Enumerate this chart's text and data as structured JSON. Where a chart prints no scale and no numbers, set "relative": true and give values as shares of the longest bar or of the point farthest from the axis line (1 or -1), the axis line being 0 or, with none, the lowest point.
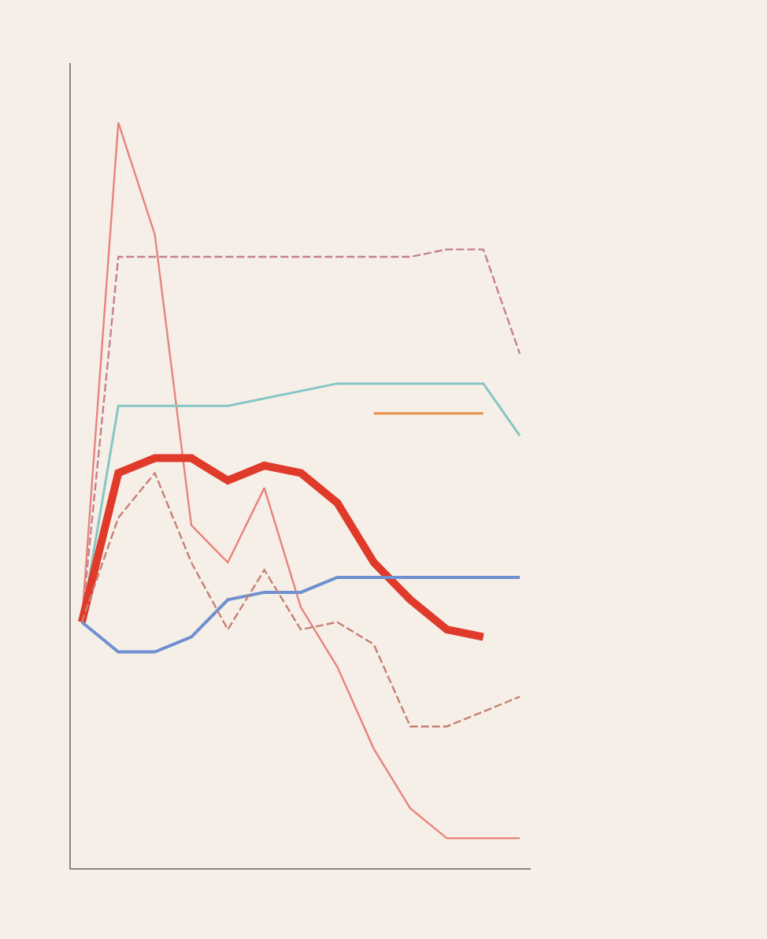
{
  "chart_data": {
    "type": "line",
    "relative": true,
    "categories": [
      null,
      null,
      null,
      null,
      null,
      null,
      null,
      null,
      null,
      null,
      null,
      null,
      null
    ],
    "grid": false,
    "marker": "none",
    "series": [
      {
        "color": "#e8837a",
        "line_style": "solid",
        "values": [
          0.33,
          1.0,
          0.85,
          0.46,
          0.41,
          0.51,
          0.35,
          0.27,
          0.16,
          0.08,
          0.04,
          0.04,
          0.04
        ]
      },
      {
        "color": "#c7808c",
        "line_style": "dashed",
        "values": [
          0.33,
          0.82,
          0.82,
          0.82,
          0.82,
          0.82,
          0.82,
          0.82,
          0.82,
          0.82,
          0.83,
          0.83,
          0.69
        ]
      },
      {
        "color": "#86c6c2",
        "line_style": "solid",
        "values": [
          0.33,
          0.62,
          0.62,
          0.62,
          0.62,
          0.63,
          0.64,
          0.65,
          0.65,
          0.65,
          0.65,
          0.65,
          0.58
        ]
      },
      {
        "color": "#e8904a",
        "line_style": "solid",
        "values": [
          null,
          null,
          null,
          null,
          null,
          null,
          null,
          null,
          0.61,
          0.61,
          0.61,
          0.61,
          null
        ]
      },
      {
        "color": "#e03a2a",
        "line_style": "solid",
        "values": [
          0.33,
          0.53,
          0.55,
          0.55,
          0.52,
          0.54,
          0.53,
          0.49,
          0.41,
          0.36,
          0.32,
          0.31,
          null
        ]
      },
      {
        "color": "#6f8fd0",
        "line_style": "solid",
        "values": [
          0.33,
          0.29,
          0.29,
          0.31,
          0.36,
          0.37,
          0.37,
          0.39,
          0.39,
          0.39,
          0.39,
          0.39,
          0.39
        ]
      },
      {
        "color": "#c88070",
        "line_style": "dashed",
        "values": [
          0.33,
          0.47,
          0.53,
          0.41,
          0.32,
          0.4,
          0.32,
          0.33,
          0.3,
          0.19,
          0.19,
          0.21,
          0.23
        ]
      }
    ]
  }
}
